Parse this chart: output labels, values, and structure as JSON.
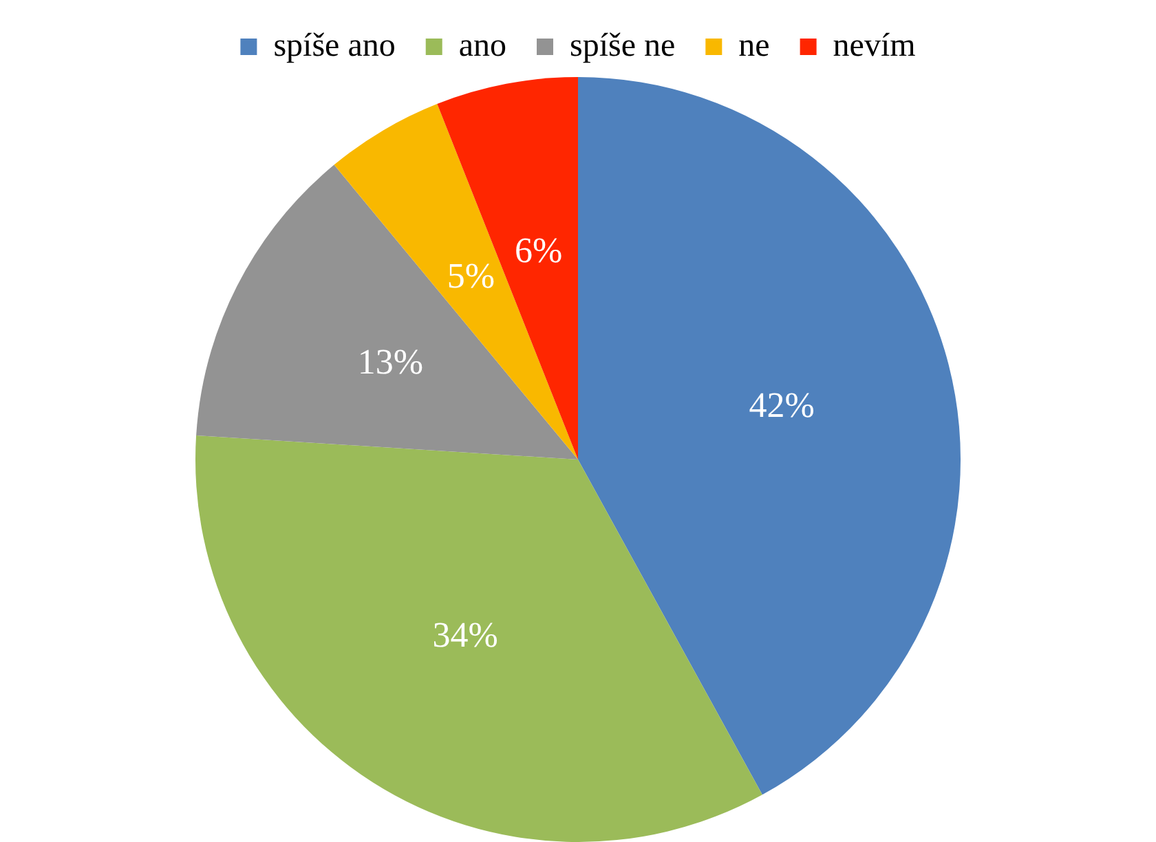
{
  "chart_data": {
    "type": "pie",
    "categories": [
      "spíše ano",
      "ano",
      "spíše ne",
      "ne",
      "nevím"
    ],
    "values": [
      42,
      34,
      13,
      5,
      6
    ],
    "colors": [
      "#4f81bd",
      "#9bbb59",
      "#939393",
      "#f9b800",
      "#ff2600"
    ],
    "value_labels": [
      "42%",
      "34%",
      "13%",
      "5%",
      "6%"
    ],
    "legend": "top"
  }
}
